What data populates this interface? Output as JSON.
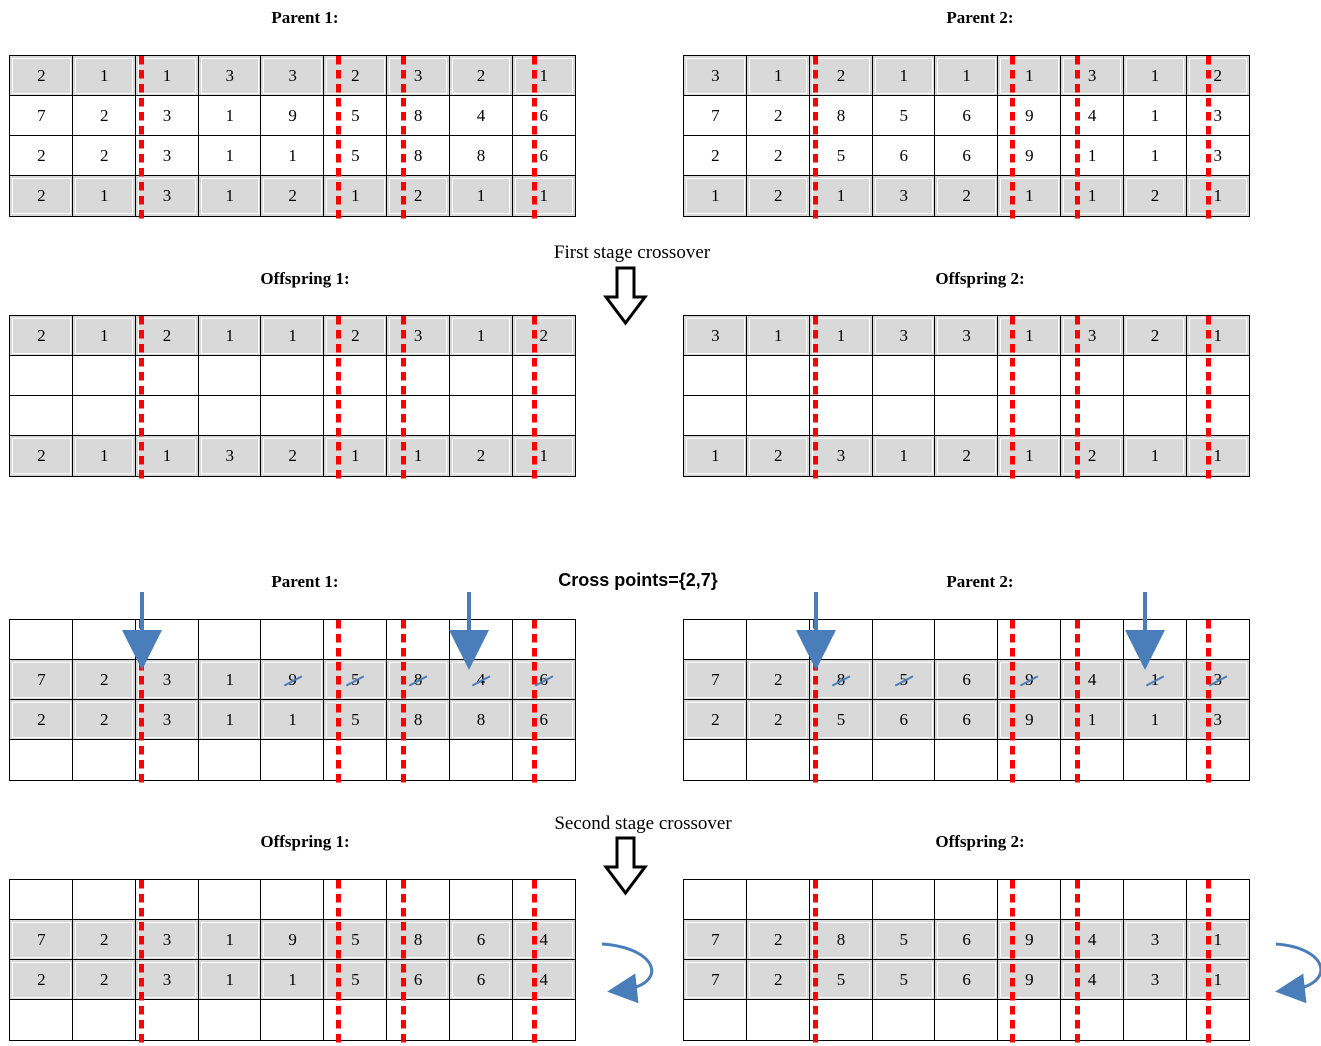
{
  "labels": {
    "parent1": "Parent 1:",
    "parent2": "Parent 2:",
    "offspring1": "Offspring 1:",
    "offspring2": "Offspring 2:",
    "first_stage": "First stage crossover",
    "second_stage": "Second stage crossover",
    "cross_points": "Cross points={2,7}"
  },
  "colors": {
    "separator": "#ff0000",
    "shade": "#d9d9d9",
    "arrow_blue": "#4a7ebb"
  },
  "top": {
    "parent1": [
      [
        "2",
        "1",
        "1",
        "3",
        "3",
        "2",
        "3",
        "2",
        "1"
      ],
      [
        "7",
        "2",
        "3",
        "1",
        "9",
        "5",
        "8",
        "4",
        "6"
      ],
      [
        "2",
        "2",
        "3",
        "1",
        "1",
        "5",
        "8",
        "8",
        "6"
      ],
      [
        "2",
        "1",
        "3",
        "1",
        "2",
        "1",
        "2",
        "1",
        "1"
      ]
    ],
    "parent2": [
      [
        "3",
        "1",
        "2",
        "1",
        "1",
        "1",
        "3",
        "1",
        "2"
      ],
      [
        "7",
        "2",
        "8",
        "5",
        "6",
        "9",
        "4",
        "1",
        "3"
      ],
      [
        "2",
        "2",
        "5",
        "6",
        "6",
        "9",
        "1",
        "1",
        "3"
      ],
      [
        "1",
        "2",
        "1",
        "3",
        "2",
        "1",
        "1",
        "2",
        "1"
      ]
    ],
    "offspring1": [
      [
        "2",
        "1",
        "2",
        "1",
        "1",
        "2",
        "3",
        "1",
        "2"
      ],
      [
        "",
        "",
        "",
        "",
        "",
        "",
        "",
        "",
        ""
      ],
      [
        "",
        "",
        "",
        "",
        "",
        "",
        "",
        "",
        ""
      ],
      [
        "2",
        "1",
        "1",
        "3",
        "2",
        "1",
        "1",
        "2",
        "1"
      ]
    ],
    "offspring2": [
      [
        "3",
        "1",
        "1",
        "3",
        "3",
        "1",
        "3",
        "2",
        "1"
      ],
      [
        "",
        "",
        "",
        "",
        "",
        "",
        "",
        "",
        ""
      ],
      [
        "",
        "",
        "",
        "",
        "",
        "",
        "",
        "",
        ""
      ],
      [
        "1",
        "2",
        "3",
        "1",
        "2",
        "1",
        "2",
        "1",
        "1"
      ]
    ]
  },
  "bottom": {
    "parent1": [
      [
        "",
        "",
        "",
        "",
        "",
        "",
        "",
        "",
        ""
      ],
      [
        "7",
        "2",
        "3",
        "1",
        "9",
        "5",
        "8",
        "4",
        "6"
      ],
      [
        "2",
        "2",
        "3",
        "1",
        "1",
        "5",
        "8",
        "8",
        "6"
      ],
      [
        "",
        "",
        "",
        "",
        "",
        "",
        "",
        "",
        ""
      ]
    ],
    "parent2": [
      [
        "",
        "",
        "",
        "",
        "",
        "",
        "",
        "",
        ""
      ],
      [
        "7",
        "2",
        "8",
        "5",
        "6",
        "9",
        "4",
        "1",
        "3"
      ],
      [
        "2",
        "2",
        "5",
        "6",
        "6",
        "9",
        "1",
        "1",
        "3"
      ],
      [
        "",
        "",
        "",
        "",
        "",
        "",
        "",
        "",
        ""
      ]
    ],
    "offspring1": [
      [
        "",
        "",
        "",
        "",
        "",
        "",
        "",
        "",
        ""
      ],
      [
        "7",
        "2",
        "3",
        "1",
        "9",
        "5",
        "8",
        "6",
        "4"
      ],
      [
        "2",
        "2",
        "3",
        "1",
        "1",
        "5",
        "6",
        "6",
        "4"
      ],
      [
        "",
        "",
        "",
        "",
        "",
        "",
        "",
        "",
        ""
      ]
    ],
    "offspring2": [
      [
        "",
        "",
        "",
        "",
        "",
        "",
        "",
        "",
        ""
      ],
      [
        "7",
        "2",
        "8",
        "5",
        "6",
        "9",
        "4",
        "3",
        "1"
      ],
      [
        "7",
        "2",
        "5",
        "5",
        "6",
        "9",
        "4",
        "3",
        "1"
      ],
      [
        "",
        "",
        "",
        "",
        "",
        "",
        "",
        "",
        ""
      ]
    ]
  }
}
